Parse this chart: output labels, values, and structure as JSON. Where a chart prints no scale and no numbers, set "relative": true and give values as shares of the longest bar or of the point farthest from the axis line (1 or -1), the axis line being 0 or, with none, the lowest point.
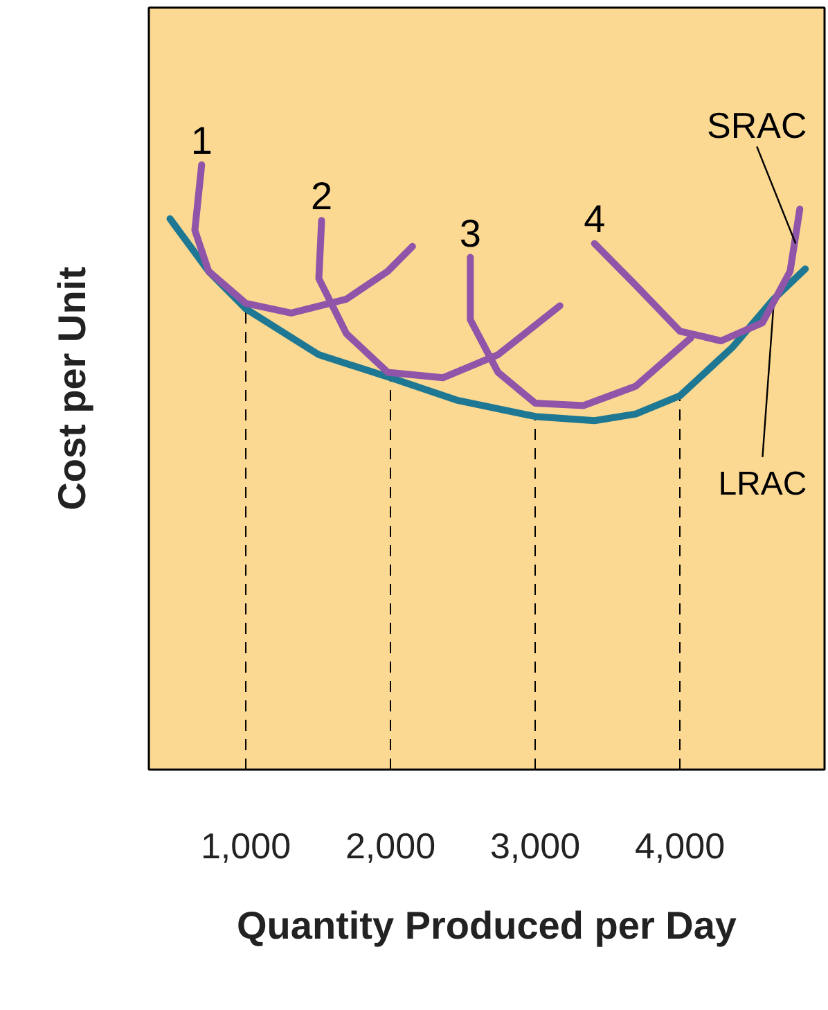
{
  "chart_data": {
    "type": "line",
    "relative": true,
    "xlabel": "Quantity Produced per Day",
    "ylabel": "Cost per Unit",
    "xlim": [
      330,
      5000
    ],
    "xticks": [
      {
        "value": 1000,
        "label": "1,000"
      },
      {
        "value": 2000,
        "label": "2,000"
      },
      {
        "value": 3000,
        "label": "3,000"
      },
      {
        "value": 4000,
        "label": "4,000"
      }
    ],
    "grid": false,
    "marker": "none",
    "line_style": "solid",
    "series": [
      {
        "name": "LRAC",
        "color": "#1f7893",
        "x": [
          476,
          743,
          1000,
          1505,
          2000,
          2457,
          3000,
          3410,
          3695,
          4000,
          4362,
          4648,
          4867
        ],
        "values": [
          0.911,
          0.824,
          0.762,
          0.686,
          0.648,
          0.611,
          0.584,
          0.577,
          0.588,
          0.618,
          0.698,
          0.778,
          0.828
        ]
      },
      {
        "name": "1",
        "color": "#8e55a9",
        "x": [
          695,
          648,
          743,
          1000,
          1314,
          1695,
          1981,
          2152
        ],
        "values": [
          1.0,
          0.892,
          0.824,
          0.771,
          0.755,
          0.778,
          0.824,
          0.865
        ]
      },
      {
        "name": "2",
        "color": "#8e55a9",
        "x": [
          1524,
          1505,
          1695,
          1981,
          2362,
          2743,
          3171
        ],
        "values": [
          0.908,
          0.812,
          0.721,
          0.657,
          0.648,
          0.686,
          0.767
        ]
      },
      {
        "name": "3",
        "color": "#8e55a9",
        "x": [
          2552,
          2552,
          2743,
          3000,
          3333,
          3695,
          4076
        ],
        "values": [
          0.847,
          0.744,
          0.657,
          0.606,
          0.602,
          0.634,
          0.714
        ]
      },
      {
        "name": "4",
        "color": "#8e55a9",
        "x": [
          3410,
          3695,
          4000,
          4286,
          4571,
          4762,
          4829
        ],
        "values": [
          0.87,
          0.801,
          0.725,
          0.709,
          0.739,
          0.824,
          0.927
        ]
      }
    ],
    "ref_lines": [
      {
        "axis": "x",
        "value": 1000,
        "line_style": "dashed",
        "color": "#000000"
      },
      {
        "axis": "x",
        "value": 2000,
        "line_style": "dashed",
        "color": "#000000"
      },
      {
        "axis": "x",
        "value": 3000,
        "line_style": "dashed",
        "color": "#000000"
      },
      {
        "axis": "x",
        "value": 4000,
        "line_style": "dashed",
        "color": "#000000"
      }
    ],
    "annotations": [
      {
        "text": "SRAC",
        "x": 4800,
        "y": 0.87
      }
    ]
  }
}
